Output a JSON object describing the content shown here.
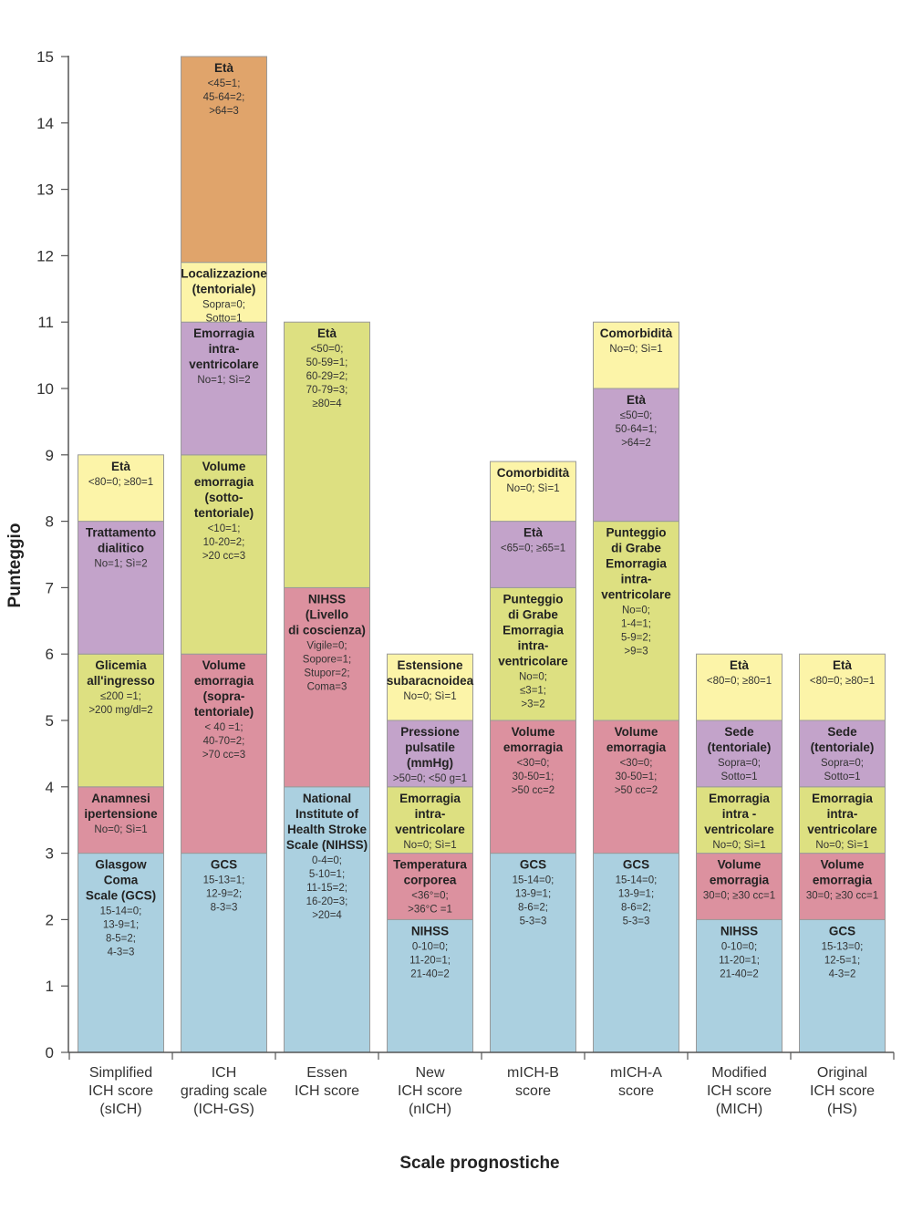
{
  "chart_data": {
    "type": "bar",
    "stacked": true,
    "xlabel": "Scale prognostiche",
    "ylabel": "Punteggio",
    "ylim": [
      0,
      15
    ],
    "yticks": [
      0,
      1,
      2,
      3,
      4,
      5,
      6,
      7,
      8,
      9,
      10,
      11,
      12,
      13,
      14,
      15
    ],
    "colors": {
      "blue": "#abd0e0",
      "pink": "#dc919f",
      "green": "#dde081",
      "purple": "#c3a3ca",
      "yellow": "#fcf4a8",
      "orange": "#e0a46b"
    },
    "categories": [
      {
        "label": [
          "Simplified",
          "ICH score",
          "(sICH)"
        ],
        "segments": [
          {
            "start": 0,
            "end": 3,
            "color": "blue",
            "title": [
              "Glasgow",
              "Coma",
              "Scale (GCS)"
            ],
            "details": [
              "15-14=0;",
              "13-9=1;",
              "8-5=2;",
              "4-3=3"
            ]
          },
          {
            "start": 3,
            "end": 4,
            "color": "pink",
            "title": [
              "Anamnesi",
              "ipertensione"
            ],
            "details": [
              "No=0; Sì=1"
            ]
          },
          {
            "start": 4,
            "end": 6,
            "color": "green",
            "title": [
              "Glicemia",
              "all'ingresso"
            ],
            "details": [
              "≤200 =1;",
              ">200 mg/dl=2"
            ]
          },
          {
            "start": 6,
            "end": 8,
            "color": "purple",
            "title": [
              "Trattamento",
              "dialitico"
            ],
            "details": [
              "No=1; Sì=2"
            ]
          },
          {
            "start": 8,
            "end": 9,
            "color": "yellow",
            "title": [
              "Età"
            ],
            "details": [
              "<80=0; ≥80=1"
            ]
          }
        ]
      },
      {
        "label": [
          "ICH",
          "grading scale",
          "(ICH-GS)"
        ],
        "segments": [
          {
            "start": 0,
            "end": 3,
            "color": "blue",
            "title": [
              "GCS"
            ],
            "details": [
              "15-13=1;",
              "12-9=2;",
              "8-3=3"
            ]
          },
          {
            "start": 3,
            "end": 6,
            "color": "pink",
            "title": [
              "Volume",
              "emorragia",
              "(sopra-",
              "tentoriale)"
            ],
            "details": [
              "< 40 =1;",
              "40-70=2;",
              ">70 cc=3"
            ]
          },
          {
            "start": 6,
            "end": 9,
            "color": "green",
            "title": [
              "Volume",
              "emorragia",
              "(sotto-",
              "tentoriale)"
            ],
            "details": [
              "<10=1;",
              "10-20=2;",
              ">20 cc=3"
            ]
          },
          {
            "start": 9,
            "end": 11,
            "color": "purple",
            "title": [
              "Emorragia",
              "intra-",
              "ventricolare"
            ],
            "details": [
              "No=1; Sì=2"
            ]
          },
          {
            "start": 11,
            "end": 11.9,
            "color": "yellow",
            "title": [
              "Localizzazione",
              "(tentoriale)"
            ],
            "details": [
              "Sopra=0;",
              "Sotto=1"
            ]
          },
          {
            "start": 11.9,
            "end": 15,
            "color": "orange",
            "title": [
              "Età"
            ],
            "details": [
              "<45=1;",
              "45-64=2;",
              ">64=3"
            ]
          }
        ]
      },
      {
        "label": [
          "Essen",
          "ICH score"
        ],
        "segments": [
          {
            "start": 0,
            "end": 4,
            "color": "blue",
            "title": [
              "National",
              "Institute of",
              "Health Stroke",
              "Scale (NIHSS)"
            ],
            "details": [
              "0-4=0;",
              "5-10=1;",
              "11-15=2;",
              "16-20=3;",
              ">20=4"
            ]
          },
          {
            "start": 4,
            "end": 7,
            "color": "pink",
            "title": [
              "NIHSS",
              "(Livello",
              "di coscienza)"
            ],
            "details": [
              "Vigile=0;",
              "Sopore=1;",
              "Stupor=2;",
              "Coma=3"
            ]
          },
          {
            "start": 7,
            "end": 11,
            "color": "green",
            "title": [
              "Età"
            ],
            "details": [
              "<50=0;",
              "50-59=1;",
              "60-29=2;",
              "70-79=3;",
              "≥80=4"
            ]
          }
        ]
      },
      {
        "label": [
          "New",
          "ICH score",
          "(nICH)"
        ],
        "segments": [
          {
            "start": 0,
            "end": 2,
            "color": "blue",
            "title": [
              "NIHSS"
            ],
            "details": [
              "0-10=0;",
              "11-20=1;",
              "21-40=2"
            ]
          },
          {
            "start": 2,
            "end": 3,
            "color": "pink",
            "title": [
              "Temperatura",
              "corporea"
            ],
            "details": [
              "<36°=0;",
              ">36°C =1"
            ]
          },
          {
            "start": 3,
            "end": 4,
            "color": "green",
            "title": [
              "Emorragia",
              "intra-",
              "ventricolare"
            ],
            "details": [
              "No=0; Sì=1"
            ]
          },
          {
            "start": 4,
            "end": 5,
            "color": "purple",
            "title": [
              "Pressione",
              "pulsatile",
              "(mmHg)"
            ],
            "details": [
              ">50=0; <50 g=1"
            ]
          },
          {
            "start": 5,
            "end": 6,
            "color": "yellow",
            "title": [
              "Estensione",
              "subaracnoidea"
            ],
            "details": [
              "No=0; Sì=1"
            ]
          }
        ]
      },
      {
        "label": [
          "mICH-B",
          "score"
        ],
        "segments": [
          {
            "start": 0,
            "end": 3,
            "color": "blue",
            "title": [
              "GCS"
            ],
            "details": [
              "15-14=0;",
              "13-9=1;",
              "8-6=2;",
              "5-3=3"
            ]
          },
          {
            "start": 3,
            "end": 5,
            "color": "pink",
            "title": [
              "Volume",
              "emorragia"
            ],
            "details": [
              "<30=0;",
              "30-50=1;",
              ">50 cc=2"
            ]
          },
          {
            "start": 5,
            "end": 7,
            "color": "green",
            "title": [
              "Punteggio",
              "di Grabe",
              "Emorragia",
              "intra-",
              "ventricolare"
            ],
            "details": [
              "No=0;",
              "≤3=1;",
              ">3=2"
            ]
          },
          {
            "start": 7,
            "end": 8,
            "color": "purple",
            "title": [
              "Età"
            ],
            "details": [
              "<65=0; ≥65=1"
            ]
          },
          {
            "start": 8,
            "end": 8.9,
            "color": "yellow",
            "title": [
              "Comorbidità"
            ],
            "details": [
              "No=0; Sì=1"
            ]
          }
        ]
      },
      {
        "label": [
          "mICH-A",
          "score"
        ],
        "segments": [
          {
            "start": 0,
            "end": 3,
            "color": "blue",
            "title": [
              "GCS"
            ],
            "details": [
              "15-14=0;",
              "13-9=1;",
              "8-6=2;",
              "5-3=3"
            ]
          },
          {
            "start": 3,
            "end": 5,
            "color": "pink",
            "title": [
              "Volume",
              "emorragia"
            ],
            "details": [
              "<30=0;",
              "30-50=1;",
              ">50 cc=2"
            ]
          },
          {
            "start": 5,
            "end": 8,
            "color": "green",
            "title": [
              "Punteggio",
              "di Grabe",
              "Emorragia",
              "intra-",
              "ventricolare"
            ],
            "details": [
              "No=0;",
              "1-4=1;",
              "5-9=2;",
              ">9=3"
            ]
          },
          {
            "start": 8,
            "end": 10,
            "color": "purple",
            "title": [
              "Età"
            ],
            "details": [
              "≤50=0;",
              "50-64=1;",
              ">64=2"
            ]
          },
          {
            "start": 10,
            "end": 11,
            "color": "yellow",
            "title": [
              "Comorbidità"
            ],
            "details": [
              "No=0; Sì=1"
            ]
          }
        ]
      },
      {
        "label": [
          "Modified",
          "ICH score",
          "(MICH)"
        ],
        "segments": [
          {
            "start": 0,
            "end": 2,
            "color": "blue",
            "title": [
              "NIHSS"
            ],
            "details": [
              "0-10=0;",
              "11-20=1;",
              "21-40=2"
            ]
          },
          {
            "start": 2,
            "end": 3,
            "color": "pink",
            "title": [
              "Volume",
              "emorragia"
            ],
            "details": [
              "30=0; ≥30 cc=1"
            ]
          },
          {
            "start": 3,
            "end": 4,
            "color": "green",
            "title": [
              "Emorragia",
              "intra -",
              "ventricolare"
            ],
            "details": [
              "No=0; Sì=1"
            ]
          },
          {
            "start": 4,
            "end": 5,
            "color": "purple",
            "title": [
              "Sede",
              "(tentoriale)"
            ],
            "details": [
              "Sopra=0;",
              "Sotto=1"
            ]
          },
          {
            "start": 5,
            "end": 6,
            "color": "yellow",
            "title": [
              "Età"
            ],
            "details": [
              "<80=0; ≥80=1"
            ]
          }
        ]
      },
      {
        "label": [
          "Original",
          "ICH score",
          "(HS)"
        ],
        "segments": [
          {
            "start": 0,
            "end": 2,
            "color": "blue",
            "title": [
              "GCS"
            ],
            "details": [
              "15-13=0;",
              "12-5=1;",
              "4-3=2"
            ]
          },
          {
            "start": 2,
            "end": 3,
            "color": "pink",
            "title": [
              "Volume",
              "emorragia"
            ],
            "details": [
              "30=0; ≥30 cc=1"
            ]
          },
          {
            "start": 3,
            "end": 4,
            "color": "green",
            "title": [
              "Emorragia",
              "intra-",
              "ventricolare"
            ],
            "details": [
              "No=0; Sì=1"
            ]
          },
          {
            "start": 4,
            "end": 5,
            "color": "purple",
            "title": [
              "Sede",
              "(tentoriale)"
            ],
            "details": [
              "Sopra=0;",
              "Sotto=1"
            ]
          },
          {
            "start": 5,
            "end": 6,
            "color": "yellow",
            "title": [
              "Età"
            ],
            "details": [
              "<80=0; ≥80=1"
            ]
          }
        ]
      }
    ]
  }
}
